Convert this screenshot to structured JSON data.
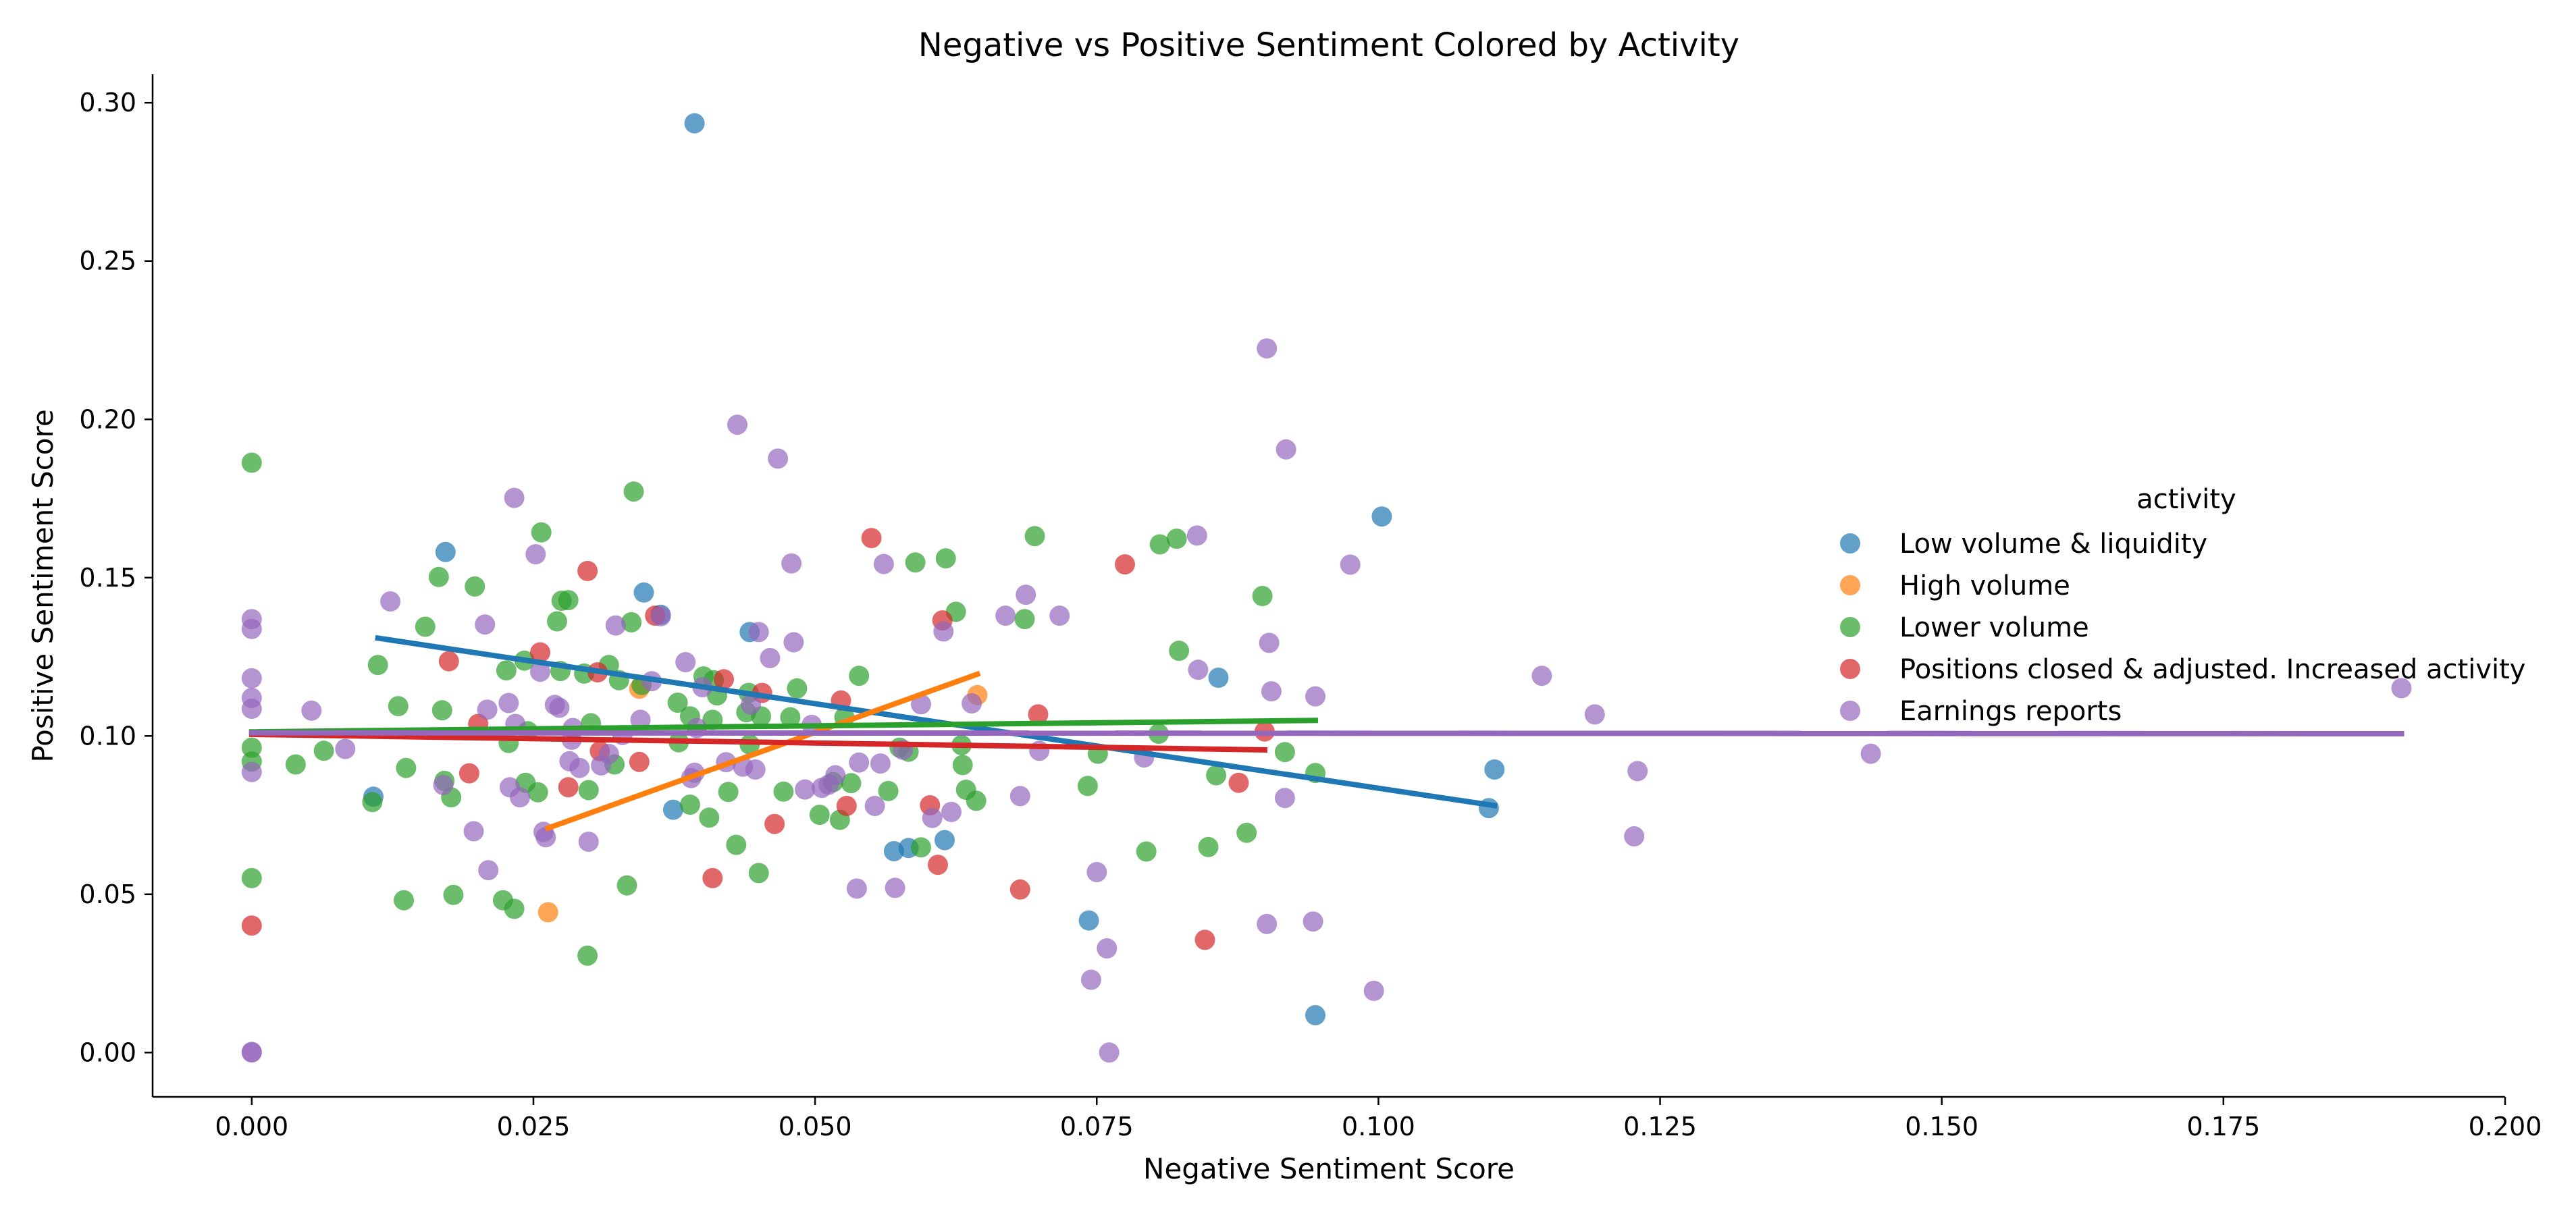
{
  "chart_data": {
    "type": "scatter",
    "title": "Negative vs Positive Sentiment Colored by Activity",
    "xlabel": "Negative Sentiment Score",
    "ylabel": "Positive Sentiment Score",
    "xlim": [
      -0.0088,
      0.2
    ],
    "ylim": [
      -0.014,
      0.309
    ],
    "xticks": [
      0.0,
      0.025,
      0.05,
      0.075,
      0.1,
      0.125,
      0.15,
      0.175,
      0.2
    ],
    "xtick_labels": [
      "0.000",
      "0.025",
      "0.050",
      "0.075",
      "0.100",
      "0.125",
      "0.150",
      "0.175",
      "0.200"
    ],
    "yticks": [
      0.0,
      0.05,
      0.1,
      0.15,
      0.2,
      0.25,
      0.3
    ],
    "ytick_labels": [
      "0.00",
      "0.05",
      "0.10",
      "0.15",
      "0.20",
      "0.25",
      "0.30"
    ],
    "grid": false,
    "legend": {
      "title": "activity",
      "position": "right"
    },
    "series": [
      {
        "name": "Low volume & liquidity",
        "color": "#1f77b4",
        "points": [
          [
            0.0393,
            0.2935
          ],
          [
            0.0172,
            0.1581
          ],
          [
            0.0348,
            0.1453
          ],
          [
            0.0363,
            0.1383
          ],
          [
            0.0442,
            0.1328
          ],
          [
            0.1003,
            0.1693
          ],
          [
            0.0858,
            0.1184
          ],
          [
            0.0108,
            0.0808
          ],
          [
            0.0374,
            0.0767
          ],
          [
            0.0583,
            0.0646
          ],
          [
            0.0615,
            0.0671
          ],
          [
            0.0743,
            0.0417
          ],
          [
            0.0944,
            0.0118
          ],
          [
            0.1103,
            0.0894
          ],
          [
            0.1098,
            0.0772
          ],
          [
            0.057,
            0.0636
          ]
        ],
        "fit": [
          [
            0.0112,
            0.1309
          ],
          [
            0.1103,
            0.078
          ]
        ]
      },
      {
        "name": "High volume",
        "color": "#ff7f0e",
        "points": [
          [
            0.0263,
            0.0443
          ],
          [
            0.0344,
            0.1149
          ],
          [
            0.0644,
            0.1129
          ]
        ],
        "fit": [
          [
            0.0263,
            0.0709
          ],
          [
            0.0644,
            0.1195
          ]
        ]
      },
      {
        "name": "Lower volume",
        "color": "#2ca02c",
        "points": [
          [
            0.0,
            0.1863
          ],
          [
            0.0,
            0.0963
          ],
          [
            0.0,
            0.0919
          ],
          [
            0.0,
            0.0551
          ],
          [
            0.0039,
            0.091
          ],
          [
            0.0064,
            0.0953
          ],
          [
            0.0107,
            0.0791
          ],
          [
            0.0112,
            0.1224
          ],
          [
            0.013,
            0.1094
          ],
          [
            0.0135,
            0.0481
          ],
          [
            0.0137,
            0.0899
          ],
          [
            0.0154,
            0.1345
          ],
          [
            0.0166,
            0.1502
          ],
          [
            0.0169,
            0.1081
          ],
          [
            0.0171,
            0.0858
          ],
          [
            0.0177,
            0.0806
          ],
          [
            0.0179,
            0.0498
          ],
          [
            0.0198,
            0.1472
          ],
          [
            0.0223,
            0.0481
          ],
          [
            0.0226,
            0.1207
          ],
          [
            0.0228,
            0.0978
          ],
          [
            0.0233,
            0.0454
          ],
          [
            0.0242,
            0.1238
          ],
          [
            0.0243,
            0.0852
          ],
          [
            0.0245,
            0.1015
          ],
          [
            0.0254,
            0.0822
          ],
          [
            0.0257,
            0.1643
          ],
          [
            0.0271,
            0.1362
          ],
          [
            0.0275,
            0.1427
          ],
          [
            0.0274,
            0.1205
          ],
          [
            0.0281,
            0.1429
          ],
          [
            0.0295,
            0.1197
          ],
          [
            0.0298,
            0.0306
          ],
          [
            0.0301,
            0.104
          ],
          [
            0.0299,
            0.0829
          ],
          [
            0.0317,
            0.1224
          ],
          [
            0.0322,
            0.091
          ],
          [
            0.0326,
            0.1176
          ],
          [
            0.0333,
            0.0528
          ],
          [
            0.0337,
            0.1359
          ],
          [
            0.0339,
            0.1772
          ],
          [
            0.0346,
            0.1161
          ],
          [
            0.0378,
            0.1105
          ],
          [
            0.0379,
            0.098
          ],
          [
            0.0389,
            0.0783
          ],
          [
            0.0389,
            0.1062
          ],
          [
            0.0401,
            0.1188
          ],
          [
            0.0406,
            0.0742
          ],
          [
            0.0409,
            0.1051
          ],
          [
            0.041,
            0.1176
          ],
          [
            0.0413,
            0.1128
          ],
          [
            0.0423,
            0.0823
          ],
          [
            0.043,
            0.0656
          ],
          [
            0.0439,
            0.1075
          ],
          [
            0.0441,
            0.1136
          ],
          [
            0.0442,
            0.0973
          ],
          [
            0.045,
            0.0567
          ],
          [
            0.0452,
            0.1062
          ],
          [
            0.0472,
            0.0824
          ],
          [
            0.0478,
            0.1059
          ],
          [
            0.0484,
            0.115
          ],
          [
            0.0504,
            0.0751
          ],
          [
            0.0516,
            0.0854
          ],
          [
            0.0522,
            0.0735
          ],
          [
            0.0526,
            0.1059
          ],
          [
            0.0532,
            0.0851
          ],
          [
            0.0539,
            0.119
          ],
          [
            0.0565,
            0.0826
          ],
          [
            0.0575,
            0.0963
          ],
          [
            0.0583,
            0.095
          ],
          [
            0.0589,
            0.1548
          ],
          [
            0.0594,
            0.0648
          ],
          [
            0.0616,
            0.1561
          ],
          [
            0.0625,
            0.1392
          ],
          [
            0.063,
            0.0971
          ],
          [
            0.0631,
            0.0908
          ],
          [
            0.0634,
            0.083
          ],
          [
            0.0643,
            0.0795
          ],
          [
            0.0686,
            0.1369
          ],
          [
            0.0695,
            0.1631
          ],
          [
            0.0742,
            0.0842
          ],
          [
            0.0751,
            0.0944
          ],
          [
            0.0794,
            0.0635
          ],
          [
            0.0806,
            0.1605
          ],
          [
            0.0805,
            0.1007
          ],
          [
            0.0821,
            0.1623
          ],
          [
            0.0823,
            0.1269
          ],
          [
            0.0849,
            0.0649
          ],
          [
            0.0856,
            0.0876
          ],
          [
            0.0883,
            0.0694
          ],
          [
            0.0897,
            0.1442
          ],
          [
            0.0917,
            0.0949
          ],
          [
            0.0944,
            0.0883
          ]
        ],
        "fit": [
          [
            0.0,
            0.1013
          ],
          [
            0.0944,
            0.1049
          ]
        ]
      },
      {
        "name": "Positions closed & adjusted. Increased activity",
        "color": "#d62728",
        "points": [
          [
            0.0,
            0.0401
          ],
          [
            0.0175,
            0.1236
          ],
          [
            0.0193,
            0.0882
          ],
          [
            0.0201,
            0.1038
          ],
          [
            0.0256,
            0.1264
          ],
          [
            0.0281,
            0.0838
          ],
          [
            0.0298,
            0.1521
          ],
          [
            0.0307,
            0.1201
          ],
          [
            0.0309,
            0.0952
          ],
          [
            0.0344,
            0.0918
          ],
          [
            0.0358,
            0.138
          ],
          [
            0.0409,
            0.0551
          ],
          [
            0.0419,
            0.1179
          ],
          [
            0.0453,
            0.1136
          ],
          [
            0.0464,
            0.0722
          ],
          [
            0.0523,
            0.1112
          ],
          [
            0.0528,
            0.0779
          ],
          [
            0.055,
            0.1625
          ],
          [
            0.0602,
            0.0781
          ],
          [
            0.0609,
            0.0593
          ],
          [
            0.0613,
            0.1365
          ],
          [
            0.0682,
            0.0515
          ],
          [
            0.0698,
            0.1068
          ],
          [
            0.0775,
            0.1542
          ],
          [
            0.0846,
            0.0356
          ],
          [
            0.0876,
            0.0852
          ],
          [
            0.0899,
            0.1014
          ]
        ],
        "fit": [
          [
            0.0,
            0.1005
          ],
          [
            0.0899,
            0.0956
          ]
        ]
      },
      {
        "name": "Earnings reports",
        "color": "#9467bd",
        "points": [
          [
            0.0,
            0.1369
          ],
          [
            0.0,
            0.1338
          ],
          [
            0.0,
            0.1182
          ],
          [
            0.0,
            0.112
          ],
          [
            0.0,
            0.1086
          ],
          [
            0.0,
            0.0886
          ],
          [
            0.0,
            0.0002
          ],
          [
            0.0,
            0.0
          ],
          [
            0.0053,
            0.108
          ],
          [
            0.0083,
            0.0959
          ],
          [
            0.0123,
            0.1425
          ],
          [
            0.017,
            0.0845
          ],
          [
            0.0197,
            0.0699
          ],
          [
            0.0207,
            0.1352
          ],
          [
            0.0209,
            0.1083
          ],
          [
            0.021,
            0.0576
          ],
          [
            0.0228,
            0.1104
          ],
          [
            0.0229,
            0.0838
          ],
          [
            0.0233,
            0.1752
          ],
          [
            0.0234,
            0.1038
          ],
          [
            0.0238,
            0.0806
          ],
          [
            0.0252,
            0.1574
          ],
          [
            0.0256,
            0.1203
          ],
          [
            0.0259,
            0.0697
          ],
          [
            0.0261,
            0.068
          ],
          [
            0.0269,
            0.1098
          ],
          [
            0.0273,
            0.1089
          ],
          [
            0.0282,
            0.092
          ],
          [
            0.0284,
            0.0988
          ],
          [
            0.0285,
            0.1025
          ],
          [
            0.0291,
            0.0899
          ],
          [
            0.0299,
            0.0666
          ],
          [
            0.031,
            0.0907
          ],
          [
            0.0317,
            0.0943
          ],
          [
            0.0323,
            0.1349
          ],
          [
            0.0329,
            0.1003
          ],
          [
            0.0345,
            0.1051
          ],
          [
            0.0355,
            0.1173
          ],
          [
            0.0363,
            0.1378
          ],
          [
            0.0385,
            0.1233
          ],
          [
            0.039,
            0.0867
          ],
          [
            0.0393,
            0.0884
          ],
          [
            0.0395,
            0.1025
          ],
          [
            0.04,
            0.1154
          ],
          [
            0.0421,
            0.0917
          ],
          [
            0.0431,
            0.1983
          ],
          [
            0.0436,
            0.0903
          ],
          [
            0.0443,
            0.1099
          ],
          [
            0.0447,
            0.0894
          ],
          [
            0.045,
            0.1328
          ],
          [
            0.046,
            0.1246
          ],
          [
            0.0467,
            0.1876
          ],
          [
            0.0479,
            0.1545
          ],
          [
            0.0481,
            0.1296
          ],
          [
            0.0491,
            0.0831
          ],
          [
            0.0497,
            0.1035
          ],
          [
            0.0506,
            0.0836
          ],
          [
            0.0512,
            0.0846
          ],
          [
            0.0518,
            0.0876
          ],
          [
            0.0537,
            0.0518
          ],
          [
            0.0539,
            0.0916
          ],
          [
            0.0553,
            0.0779
          ],
          [
            0.0558,
            0.0913
          ],
          [
            0.0561,
            0.1543
          ],
          [
            0.0571,
            0.052
          ],
          [
            0.0578,
            0.0956
          ],
          [
            0.0594,
            0.11
          ],
          [
            0.0604,
            0.0741
          ],
          [
            0.0614,
            0.133
          ],
          [
            0.0621,
            0.076
          ],
          [
            0.0639,
            0.1103
          ],
          [
            0.0669,
            0.138
          ],
          [
            0.0682,
            0.081
          ],
          [
            0.0687,
            0.1446
          ],
          [
            0.0699,
            0.0953
          ],
          [
            0.0717,
            0.138
          ],
          [
            0.0745,
            0.023
          ],
          [
            0.075,
            0.057
          ],
          [
            0.0759,
            0.0329
          ],
          [
            0.0761,
            0.0
          ],
          [
            0.0792,
            0.0932
          ],
          [
            0.084,
            0.1209
          ],
          [
            0.0839,
            0.1633
          ],
          [
            0.0901,
            0.2224
          ],
          [
            0.0901,
            0.0406
          ],
          [
            0.0903,
            0.1294
          ],
          [
            0.0905,
            0.1141
          ],
          [
            0.0918,
            0.1905
          ],
          [
            0.0917,
            0.0804
          ],
          [
            0.0942,
            0.0414
          ],
          [
            0.0944,
            0.1125
          ],
          [
            0.0975,
            0.1541
          ],
          [
            0.0996,
            0.0195
          ],
          [
            0.1145,
            0.119
          ],
          [
            0.1192,
            0.1068
          ],
          [
            0.123,
            0.0889
          ],
          [
            0.1227,
            0.0683
          ],
          [
            0.1437,
            0.0944
          ],
          [
            0.1908,
            0.1151
          ]
        ],
        "fit": [
          [
            0.0,
            0.101
          ],
          [
            0.1908,
            0.1007
          ]
        ]
      }
    ]
  }
}
